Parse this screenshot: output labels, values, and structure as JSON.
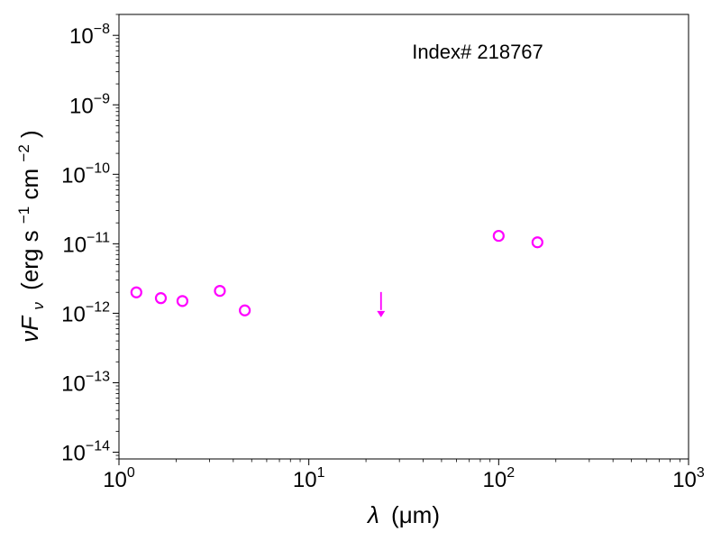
{
  "chart_data": {
    "type": "scatter",
    "title": "",
    "annotation": "Index# 218767",
    "xlabel": {
      "symbol": "λ",
      "unit": "(μm)"
    },
    "ylabel": {
      "symbol": "νF",
      "subscript": "ν",
      "unit_prefix": "(erg s",
      "unit_mid": " cm",
      "unit_suffix": ")",
      "exp1": "−1",
      "exp2": "−2"
    },
    "xscale": "log",
    "yscale": "log",
    "xlim": [
      1,
      1000
    ],
    "ylim": [
      8e-15,
      2e-08
    ],
    "xticks": [
      {
        "value": 1,
        "base": "10",
        "exp": "0"
      },
      {
        "value": 10,
        "base": "10",
        "exp": "1"
      },
      {
        "value": 100,
        "base": "10",
        "exp": "2"
      },
      {
        "value": 1000,
        "base": "10",
        "exp": "3"
      }
    ],
    "yticks": [
      {
        "value": 1e-14,
        "base": "10",
        "exp": "−14"
      },
      {
        "value": 1e-13,
        "base": "10",
        "exp": "−13"
      },
      {
        "value": 1e-12,
        "base": "10",
        "exp": "−12"
      },
      {
        "value": 1e-11,
        "base": "10",
        "exp": "−11"
      },
      {
        "value": 1e-10,
        "base": "10",
        "exp": "−10"
      },
      {
        "value": 1e-09,
        "base": "10",
        "exp": "−9"
      },
      {
        "value": 1e-08,
        "base": "10",
        "exp": "−8"
      }
    ],
    "series": [
      {
        "marker": "open-circle",
        "color": "#ff00ff",
        "points": [
          {
            "x": 1.235,
            "y": 2e-12
          },
          {
            "x": 1.662,
            "y": 1.65e-12
          },
          {
            "x": 2.159,
            "y": 1.5e-12
          },
          {
            "x": 3.4,
            "y": 2.1e-12
          },
          {
            "x": 4.6,
            "y": 1.1e-12
          },
          {
            "x": 100,
            "y": 1.3e-11
          },
          {
            "x": 160,
            "y": 1.05e-11
          }
        ]
      },
      {
        "marker": "upper-limit-arrow",
        "color": "#ff00ff",
        "points": [
          {
            "x": 24,
            "y": 1.5e-12
          }
        ]
      }
    ],
    "grid": false,
    "legend": "none"
  }
}
